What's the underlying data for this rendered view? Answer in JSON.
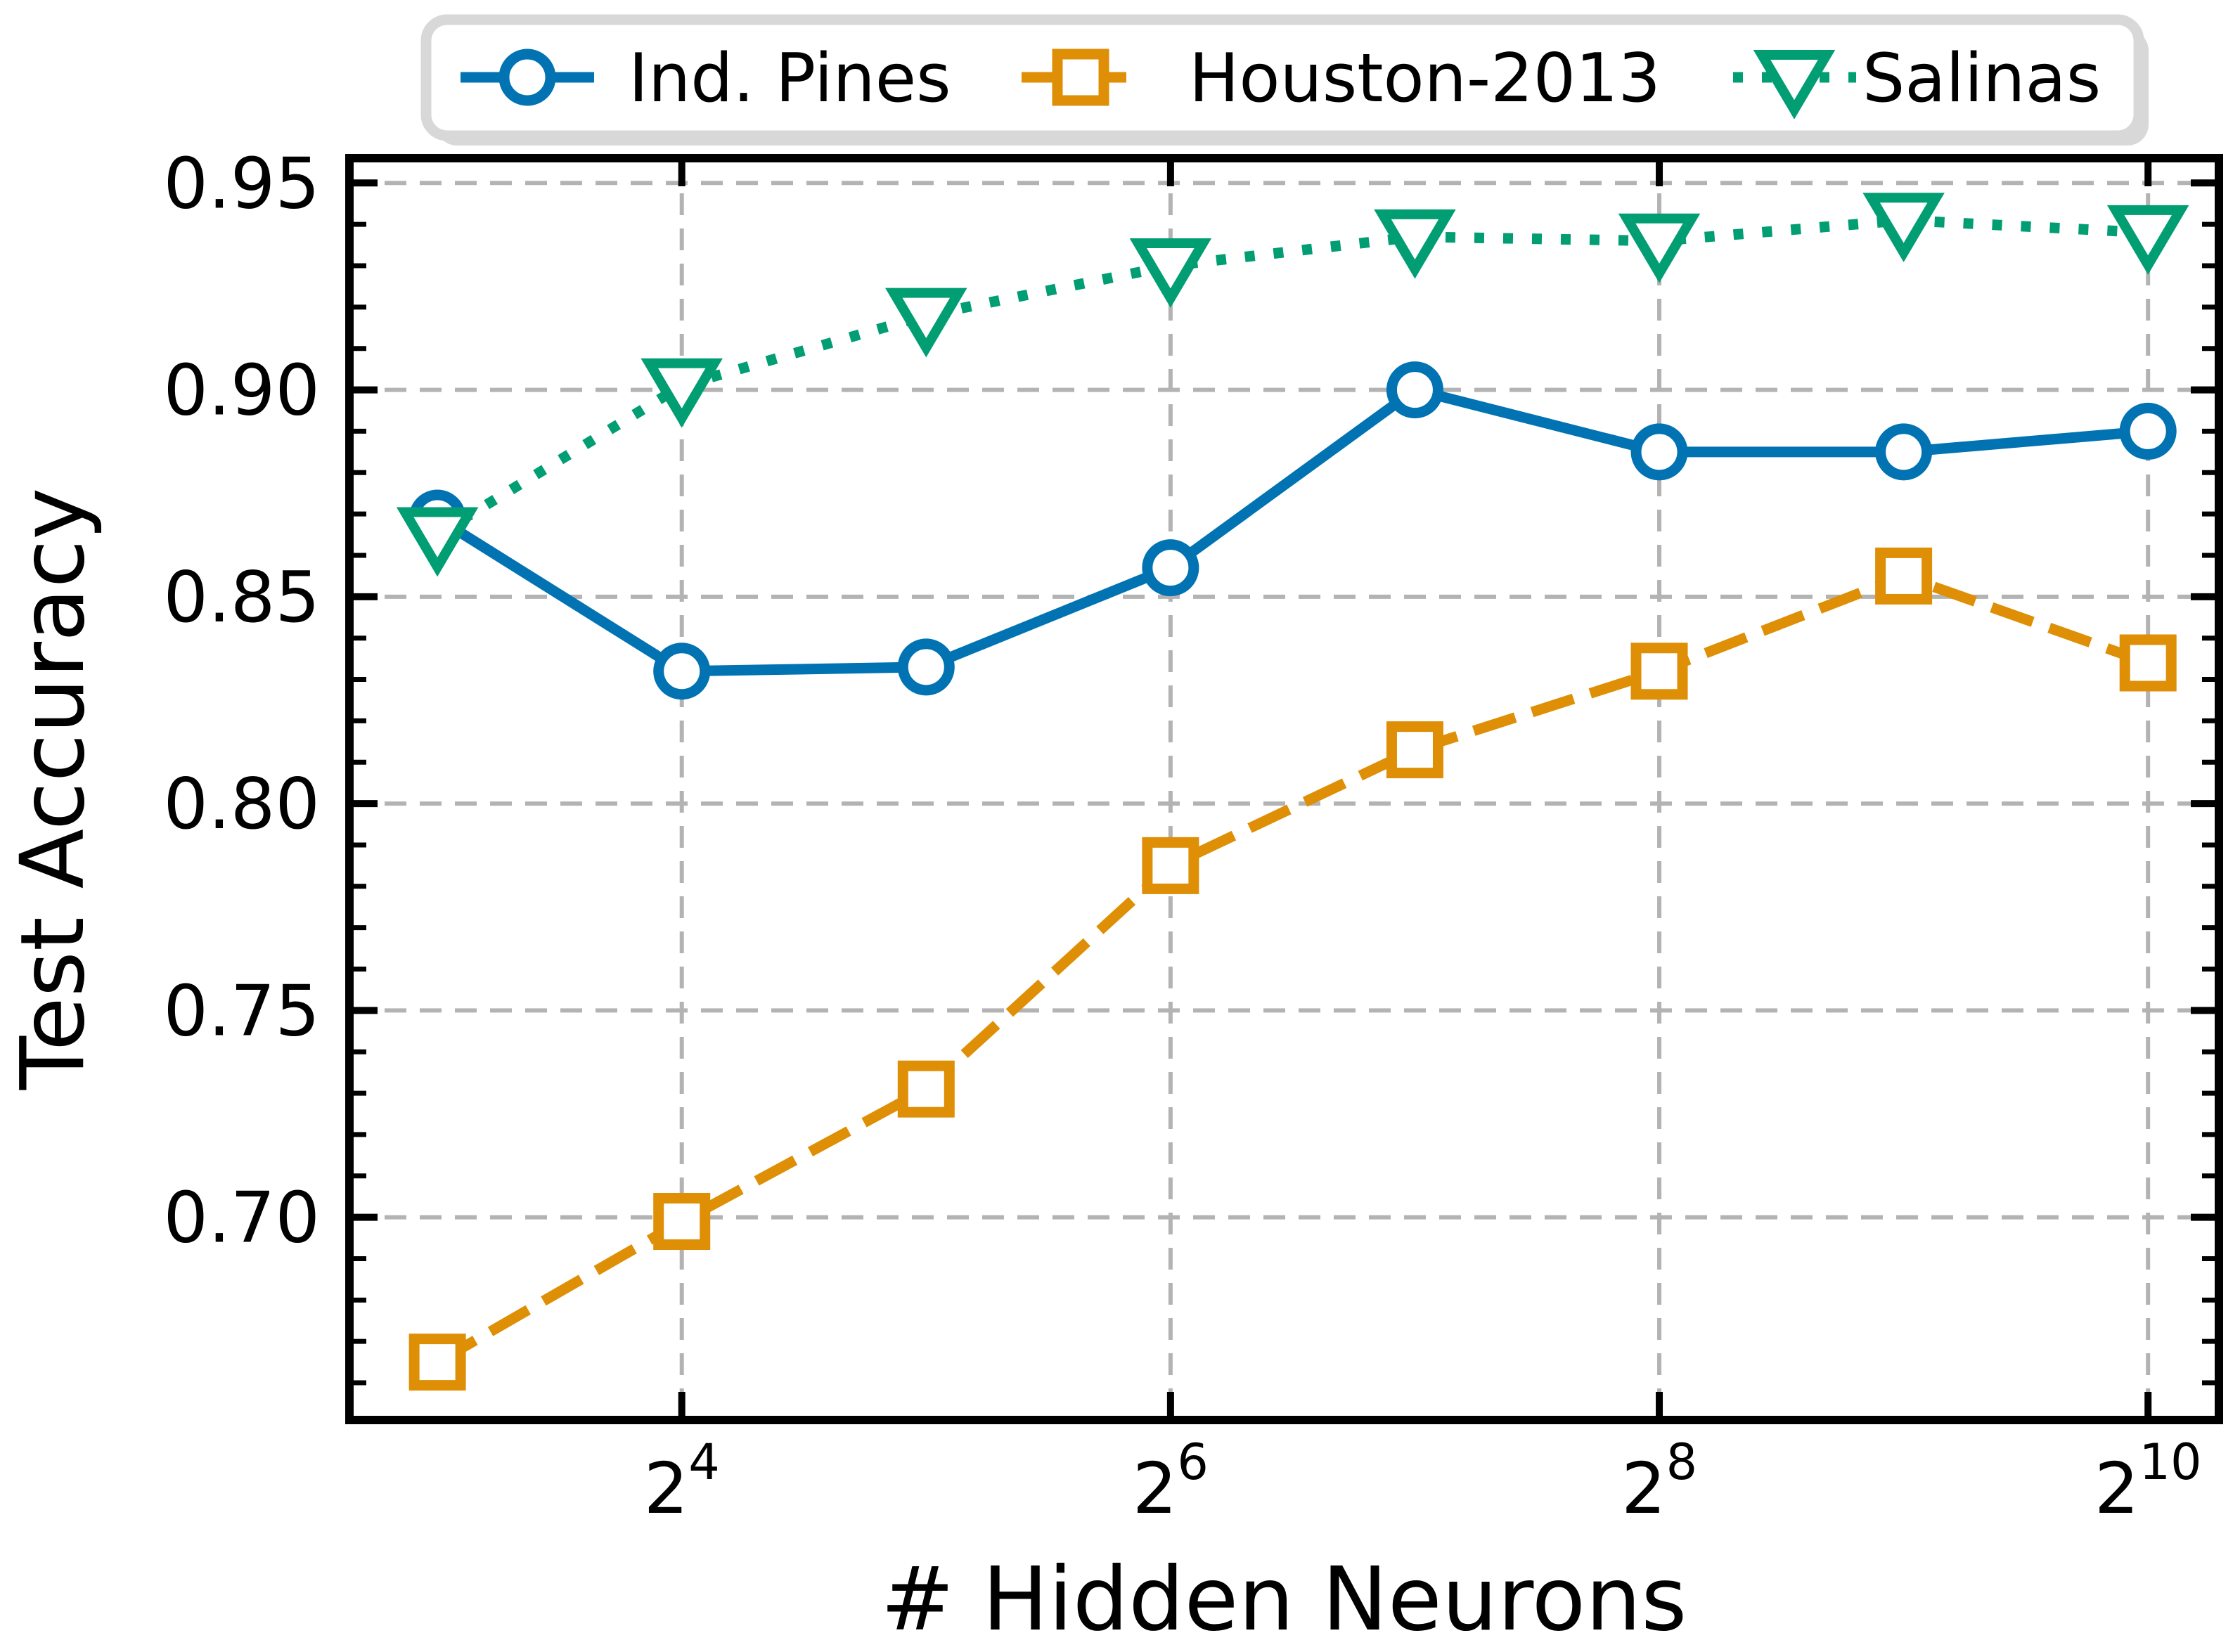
{
  "figure": {
    "background": "#ffffff"
  },
  "chart_data": {
    "type": "line",
    "xlabel": "# Hidden Neurons",
    "ylabel": "Test Accuracy",
    "x_scale": "log2",
    "x": [
      8,
      16,
      32,
      64,
      128,
      256,
      512,
      1024
    ],
    "series": [
      {
        "name": "Ind. Pines",
        "color": "#0173b2",
        "linestyle": "solid",
        "marker": "circle",
        "values": [
          0.869,
          0.832,
          0.833,
          0.857,
          0.9,
          0.885,
          0.885,
          0.89
        ]
      },
      {
        "name": "Houston-2013",
        "color": "#de8f05",
        "linestyle": "dashed",
        "marker": "square",
        "values": [
          0.665,
          0.699,
          0.731,
          0.785,
          0.813,
          0.832,
          0.855,
          0.834
        ]
      },
      {
        "name": "Salinas",
        "color": "#029e73",
        "linestyle": "dotted",
        "marker": "triangle-down",
        "values": [
          0.865,
          0.901,
          0.918,
          0.93,
          0.937,
          0.936,
          0.941,
          0.938
        ]
      }
    ],
    "x_ticks": {
      "values": [
        16,
        64,
        256,
        1024
      ],
      "labels": [
        {
          "base": "2",
          "exp": "4"
        },
        {
          "base": "2",
          "exp": "6"
        },
        {
          "base": "2",
          "exp": "8"
        },
        {
          "base": "2",
          "exp": "10"
        }
      ]
    },
    "y_ticks": {
      "values": [
        0.95,
        0.9,
        0.85,
        0.8,
        0.75,
        0.7
      ],
      "labels": [
        "0.95",
        "0.90",
        "0.85",
        "0.80",
        "0.75",
        "0.70"
      ]
    },
    "y_minor_step": 0.01,
    "ylim": [
      0.651,
      0.956
    ],
    "xlim_log2": [
      2.64,
      10.29
    ],
    "grid": {
      "show": true,
      "color": "#b3b3b3"
    },
    "legend": {
      "position": "top-outside",
      "entries": [
        "Ind. Pines",
        "Houston-2013",
        "Salinas"
      ]
    }
  },
  "colors": {
    "axis": "#000000",
    "grid": "#b3b3b3",
    "legend_border": "#d8d8d8",
    "text": "#000000",
    "marker_face": "#ffffff"
  }
}
